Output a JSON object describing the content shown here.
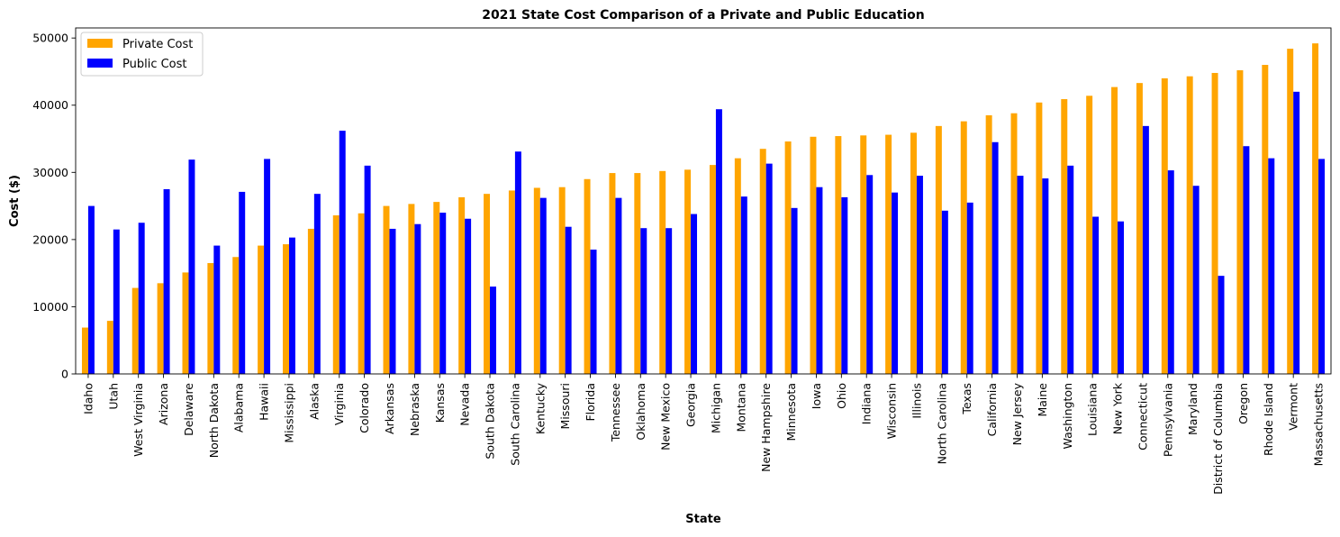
{
  "chart_data": {
    "type": "bar",
    "title": "2021 State Cost Comparison of a Private and Public Education",
    "xlabel": "State",
    "ylabel": "Cost ($)",
    "ylim": [
      0,
      51500
    ],
    "yticks": [
      0,
      10000,
      20000,
      30000,
      40000,
      50000
    ],
    "grid": false,
    "legend_position": "top-left",
    "categories": [
      "Idaho",
      "Utah",
      "West Virginia",
      "Arizona",
      "Delaware",
      "North Dakota",
      "Alabama",
      "Hawaii",
      "Mississippi",
      "Alaska",
      "Virginia",
      "Colorado",
      "Arkansas",
      "Nebraska",
      "Kansas",
      "Nevada",
      "South Dakota",
      "South Carolina",
      "Kentucky",
      "Missouri",
      "Florida",
      "Tennessee",
      "Oklahoma",
      "New Mexico",
      "Georgia",
      "Michigan",
      "Montana",
      "New Hampshire",
      "Minnesota",
      "Iowa",
      "Ohio",
      "Indiana",
      "Wisconsin",
      "Illinois",
      "North Carolina",
      "Texas",
      "California",
      "New Jersey",
      "Maine",
      "Washington",
      "Louisiana",
      "New York",
      "Connecticut",
      "Pennsylvania",
      "Maryland",
      "District of Columbia",
      "Oregon",
      "Rhode Island",
      "Vermont",
      "Massachusetts"
    ],
    "series": [
      {
        "name": "Private Cost",
        "color": "#FFA500",
        "values": [
          6900,
          7900,
          12800,
          13500,
          15100,
          16500,
          17400,
          19100,
          19300,
          21600,
          23600,
          23900,
          25000,
          25300,
          25600,
          26300,
          26800,
          27300,
          27700,
          27800,
          29000,
          29900,
          29900,
          30200,
          30400,
          31100,
          32100,
          33500,
          34600,
          35300,
          35400,
          35500,
          35600,
          35900,
          36900,
          37600,
          38500,
          38800,
          40400,
          40900,
          41400,
          42700,
          43300,
          44000,
          44300,
          44800,
          45200,
          46000,
          48400,
          49200
        ]
      },
      {
        "name": "Public Cost",
        "color": "#0000FF",
        "values": [
          25000,
          21500,
          22500,
          27500,
          31900,
          19100,
          27100,
          32000,
          20300,
          26800,
          36200,
          31000,
          21600,
          22300,
          24000,
          23100,
          13000,
          33100,
          26200,
          21900,
          18500,
          26200,
          21700,
          21700,
          23800,
          39400,
          26400,
          31300,
          24700,
          27800,
          26300,
          29600,
          27000,
          29500,
          24300,
          25500,
          34500,
          29500,
          29100,
          31000,
          23400,
          22700,
          36900,
          30300,
          28000,
          14600,
          33900,
          32100,
          42000,
          32000
        ]
      }
    ]
  }
}
